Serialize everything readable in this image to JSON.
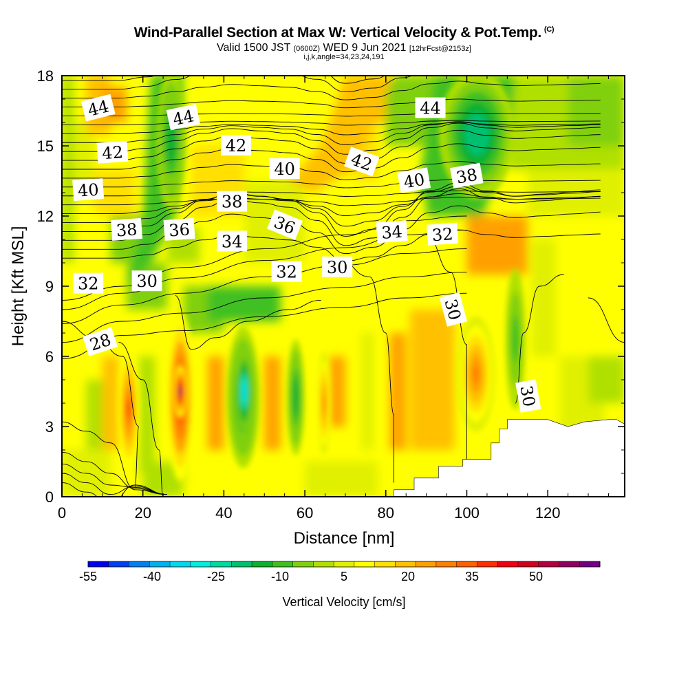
{
  "title": {
    "main": "Wind-Parallel Section at Max W: Vertical Velocity & Pot.Temp.",
    "copyright": "(C)",
    "valid_prefix": "Valid 1500 JST",
    "valid_utc": "(0600Z)",
    "valid_date": "WED 9 Jun 2021",
    "forecast": "[12hrFcst@2153z]",
    "params": "i,j,k,angle=34,23,24,191"
  },
  "chart_data": {
    "type": "heatmap",
    "xlabel": "Distance [nm]",
    "ylabel": "Height [Kft MSL]",
    "xlim": [
      0,
      139
    ],
    "ylim": [
      0,
      18
    ],
    "x_ticks": [
      "0",
      "20",
      "40",
      "60",
      "80",
      "100",
      "120"
    ],
    "y_ticks": [
      "0",
      "3",
      "6",
      "9",
      "12",
      "15",
      "18"
    ],
    "colorbar": {
      "title": "Vertical Velocity [cm/s]",
      "tick_labels": [
        "-55",
        "-40",
        "-25",
        "-10",
        "5",
        "20",
        "35",
        "50"
      ],
      "min": -55,
      "max": 65,
      "step": 5,
      "colors": [
        "#0000ee",
        "#0040ee",
        "#0080ee",
        "#00b0ee",
        "#00d8ee",
        "#00eedc",
        "#00d8a0",
        "#00c070",
        "#10b030",
        "#40c020",
        "#80d010",
        "#b0e000",
        "#e0f000",
        "#ffff00",
        "#ffe000",
        "#ffc000",
        "#ffa000",
        "#ff8000",
        "#ff6000",
        "#ff3000",
        "#f00010",
        "#d00020",
        "#b00040",
        "#900060",
        "#700080"
      ]
    },
    "vertical_velocity_cells": [
      {
        "x": [
          14.5,
          18.5
        ],
        "y": [
          1.5,
          6.0
        ],
        "value": 40
      },
      {
        "x": [
          26.5,
          32.0
        ],
        "y": [
          1.0,
          7.5
        ],
        "value": 45
      },
      {
        "x": [
          28.0,
          30.5
        ],
        "y": [
          3.5,
          5.5
        ],
        "value": 60
      },
      {
        "x": [
          41.5,
          48.0
        ],
        "y": [
          1.5,
          7.0
        ],
        "value": -15
      },
      {
        "x": [
          43.5,
          46.5
        ],
        "y": [
          3.0,
          6.0
        ],
        "value": -35
      },
      {
        "x": [
          56.0,
          59.5
        ],
        "y": [
          2.0,
          6.5
        ],
        "value": -15
      },
      {
        "x": [
          63.5,
          66.0
        ],
        "y": [
          2.0,
          6.0
        ],
        "value": 30
      },
      {
        "x": [
          98.5,
          106.0
        ],
        "y": [
          3.0,
          7.5
        ],
        "value": 30
      },
      {
        "x": [
          110.0,
          114.0
        ],
        "y": [
          4.0,
          9.5
        ],
        "value": -10
      },
      {
        "x": [
          24.0,
          30.0
        ],
        "y": [
          12.5,
          18.0
        ],
        "value": -15
      },
      {
        "x": [
          95.0,
          110.0
        ],
        "y": [
          13.0,
          18.0
        ],
        "value": -20
      }
    ],
    "theta_contour_labels": [
      {
        "text": "44",
        "x": 9,
        "y": 16.6
      },
      {
        "text": "44",
        "x": 30,
        "y": 16.2
      },
      {
        "text": "44",
        "x": 91,
        "y": 16.6
      },
      {
        "text": "42",
        "x": 12.5,
        "y": 14.7
      },
      {
        "text": "42",
        "x": 43,
        "y": 15.0
      },
      {
        "text": "42",
        "x": 74,
        "y": 14.3
      },
      {
        "text": "40",
        "x": 6.5,
        "y": 13.1
      },
      {
        "text": "40",
        "x": 55,
        "y": 14.0
      },
      {
        "text": "40",
        "x": 87,
        "y": 13.5
      },
      {
        "text": "38",
        "x": 16,
        "y": 11.4
      },
      {
        "text": "38",
        "x": 42,
        "y": 12.6
      },
      {
        "text": "38",
        "x": 100,
        "y": 13.7
      },
      {
        "text": "36",
        "x": 29,
        "y": 11.4
      },
      {
        "text": "36",
        "x": 55,
        "y": 11.6
      },
      {
        "text": "34",
        "x": 42,
        "y": 10.9
      },
      {
        "text": "34",
        "x": 81.5,
        "y": 11.3
      },
      {
        "text": "32",
        "x": 6.5,
        "y": 9.1
      },
      {
        "text": "32",
        "x": 55.5,
        "y": 9.6
      },
      {
        "text": "32",
        "x": 94,
        "y": 11.2
      },
      {
        "text": "30",
        "x": 21,
        "y": 9.2
      },
      {
        "text": "30",
        "x": 68,
        "y": 9.8
      },
      {
        "text": "30",
        "x": 96.5,
        "y": 8.0
      },
      {
        "text": "30",
        "x": 115,
        "y": 4.3
      },
      {
        "text": "28",
        "x": 9.5,
        "y": 6.6
      }
    ],
    "terrain": [
      [
        80,
        0
      ],
      [
        82,
        0
      ],
      [
        82,
        0.3
      ],
      [
        87,
        0.3
      ],
      [
        87,
        0.8
      ],
      [
        93,
        0.8
      ],
      [
        93,
        1.3
      ],
      [
        99,
        1.3
      ],
      [
        99,
        1.6
      ],
      [
        106,
        1.6
      ],
      [
        106,
        2.3
      ],
      [
        108,
        2.3
      ],
      [
        108,
        2.9
      ],
      [
        110,
        2.9
      ],
      [
        110,
        3.3
      ],
      [
        120,
        3.3
      ],
      [
        125,
        3.0
      ],
      [
        129,
        3.2
      ],
      [
        135,
        3.3
      ],
      [
        137,
        3.3
      ],
      [
        139,
        3.1
      ],
      [
        139,
        0
      ]
    ]
  }
}
